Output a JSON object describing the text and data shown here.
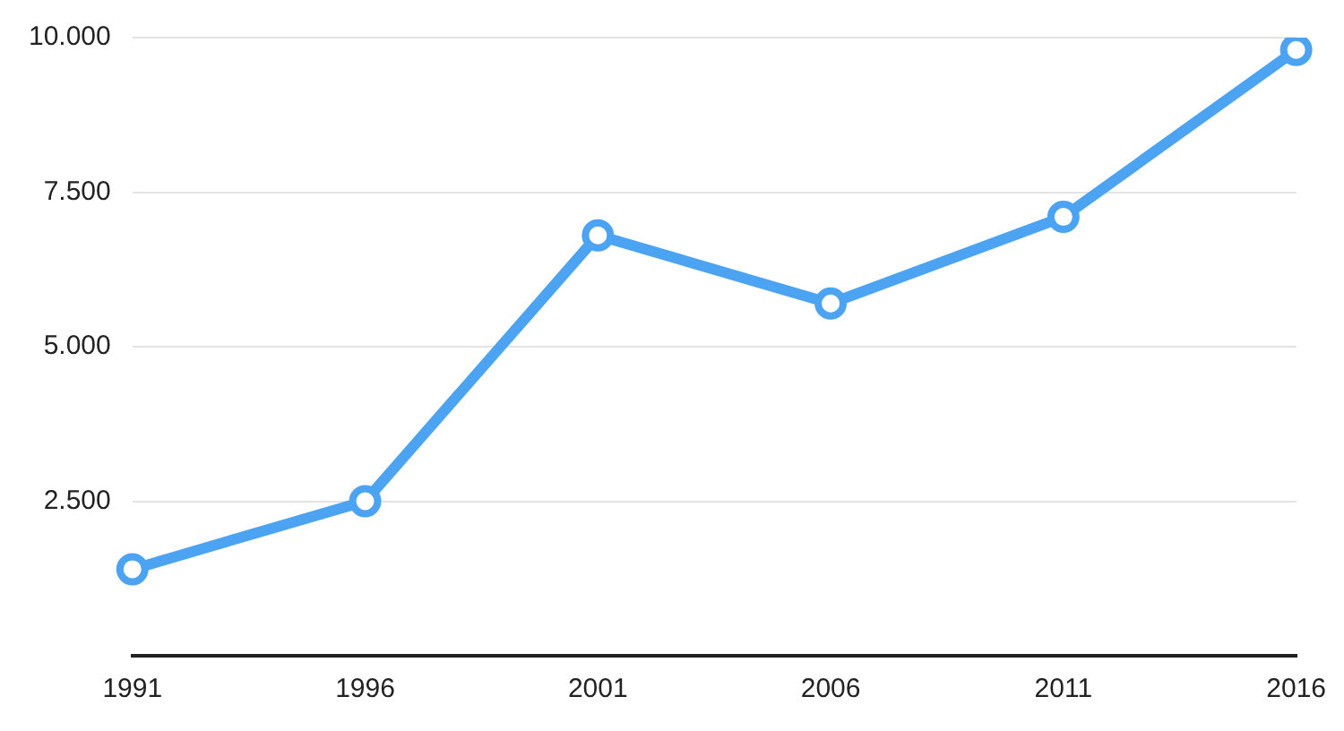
{
  "chart_data": {
    "type": "line",
    "categories": [
      "1991",
      "1996",
      "2001",
      "2006",
      "2011",
      "2016"
    ],
    "series": [
      {
        "color": "#4ba3f2",
        "values": [
          1400,
          2500,
          6800,
          5700,
          7100,
          9800
        ]
      }
    ],
    "ylim": [
      0,
      10000
    ],
    "yticks": [
      {
        "value": 2500,
        "label": "2.500"
      },
      {
        "value": 5000,
        "label": "5.000"
      },
      {
        "value": 7500,
        "label": "7.500"
      },
      {
        "value": 10000,
        "label": "10.000"
      }
    ],
    "grid": "y",
    "legend": false,
    "marker": "circle",
    "line_style": "solid"
  }
}
